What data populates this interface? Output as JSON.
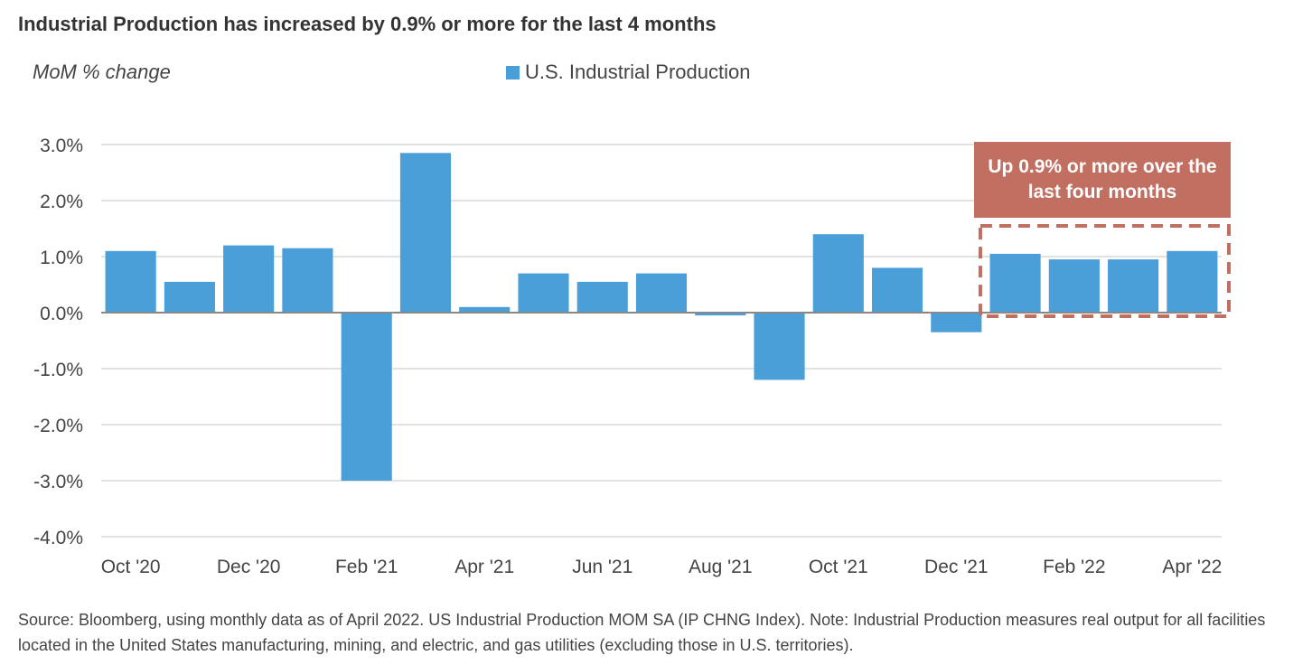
{
  "title": "Industrial Production has increased by 0.9% or more for the last 4 months",
  "subtitle": "MoM % change",
  "legend_label": "U.S. Industrial Production",
  "annotation": "Up 0.9% or more over the last four months",
  "source": "Source: Bloomberg, using monthly data as of April 2022. US Industrial Production MOM SA (IP CHNG Index). Note: Industrial Production measures real output for all facilities located in the United States manufacturing, mining, and electric, and gas utilities (excluding those in U.S. territories).",
  "colors": {
    "bar": "#4a9fd8",
    "highlight": "#c06f60",
    "grid": "#d9d9d9",
    "axis": "#888888"
  },
  "chart_data": {
    "type": "bar",
    "title": "Industrial Production has increased by 0.9% or more for the last 4 months",
    "ylabel": "MoM % change",
    "ylim": [
      -4,
      3
    ],
    "yticks": [
      "3.0%",
      "2.0%",
      "1.0%",
      "0.0%",
      "-1.0%",
      "-2.0%",
      "-3.0%",
      "-4.0%"
    ],
    "ytick_values": [
      3,
      2,
      1,
      0,
      -1,
      -2,
      -3,
      -4
    ],
    "grid": true,
    "categories": [
      "Oct '20",
      "Nov '20",
      "Dec '20",
      "Jan '21",
      "Feb '21",
      "Mar '21",
      "Apr '21",
      "May '21",
      "Jun '21",
      "Jul '21",
      "Aug '21",
      "Sep '21",
      "Oct '21",
      "Nov '21",
      "Dec '21",
      "Jan '22",
      "Feb '22",
      "Mar '22",
      "Apr '22"
    ],
    "xtick_labels": [
      "Oct '20",
      "",
      "Dec '20",
      "",
      "Feb '21",
      "",
      "Apr '21",
      "",
      "Jun '21",
      "",
      "Aug '21",
      "",
      "Oct '21",
      "",
      "Dec '21",
      "",
      "Feb '22",
      "",
      "Apr '22"
    ],
    "series": [
      {
        "name": "U.S. Industrial Production",
        "values": [
          1.1,
          0.55,
          1.2,
          1.15,
          -3.0,
          2.85,
          0.1,
          0.7,
          0.55,
          0.7,
          -0.05,
          -1.2,
          1.4,
          0.8,
          -0.35,
          1.05,
          0.95,
          0.95,
          1.1
        ]
      }
    ],
    "highlight_range": [
      15,
      18
    ]
  }
}
